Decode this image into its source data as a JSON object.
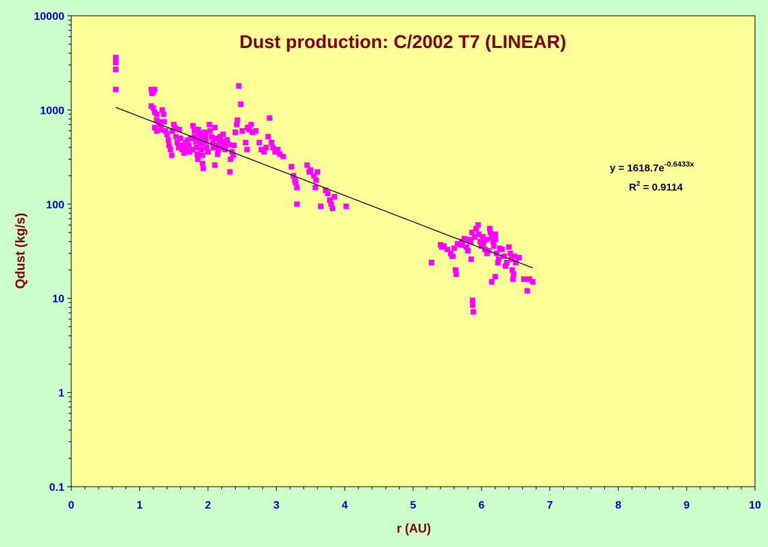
{
  "chart_data": {
    "type": "scatter",
    "title": "Dust production: C/2002 T7 (LINEAR)",
    "xlabel": "r (AU)",
    "ylabel": "Qdust (kg/s)",
    "xlim": [
      0,
      10
    ],
    "ylim": [
      0.1,
      10000
    ],
    "yscale": "log",
    "x_ticks": [
      "0",
      "1",
      "2",
      "3",
      "4",
      "5",
      "6",
      "7",
      "8",
      "9",
      "10"
    ],
    "y_ticks": [
      "0.1",
      "1",
      "10",
      "100",
      "1000",
      "10000"
    ],
    "grid": false,
    "legend": "none",
    "colors": {
      "plot_background": "#ffff99",
      "page_background": "#ccffcc",
      "points": "#ff00ff",
      "trendline": "#000000",
      "title": "#800000",
      "axis_title": "#800000",
      "tick_labels": "#0000cc"
    },
    "trendline": {
      "type": "exponential",
      "a": 1618.7,
      "b": -0.6433,
      "x_range": [
        0.65,
        6.75
      ],
      "equation_prefix": "y = 1618.7e",
      "equation_exponent": "-0.6433x",
      "r2_prefix": "R",
      "r2_sup": "2",
      "r2_suffix": " = 0.9114"
    },
    "series": [
      {
        "points": [
          [
            0.65,
            3600
          ],
          [
            0.65,
            3200
          ],
          [
            0.65,
            2700
          ],
          [
            0.65,
            1650
          ],
          [
            1.17,
            1650
          ],
          [
            1.18,
            1500
          ],
          [
            1.2,
            1550
          ],
          [
            1.22,
            1650
          ],
          [
            1.17,
            1100
          ],
          [
            1.2,
            1050
          ],
          [
            1.22,
            950
          ],
          [
            1.25,
            900
          ],
          [
            1.25,
            780
          ],
          [
            1.22,
            650
          ],
          [
            1.25,
            600
          ],
          [
            1.28,
            750
          ],
          [
            1.3,
            700
          ],
          [
            1.32,
            620
          ],
          [
            1.33,
            1000
          ],
          [
            1.35,
            900
          ],
          [
            1.36,
            750
          ],
          [
            1.38,
            600
          ],
          [
            1.4,
            550
          ],
          [
            1.42,
            480
          ],
          [
            1.43,
            420
          ],
          [
            1.45,
            380
          ],
          [
            1.47,
            330
          ],
          [
            1.48,
            600
          ],
          [
            1.5,
            700
          ],
          [
            1.52,
            650
          ],
          [
            1.53,
            520
          ],
          [
            1.55,
            450
          ],
          [
            1.57,
            400
          ],
          [
            1.58,
            620
          ],
          [
            1.6,
            500
          ],
          [
            1.62,
            380
          ],
          [
            1.63,
            420
          ],
          [
            1.65,
            350
          ],
          [
            1.67,
            450
          ],
          [
            1.68,
            400
          ],
          [
            1.7,
            480
          ],
          [
            1.72,
            420
          ],
          [
            1.73,
            360
          ],
          [
            1.75,
            500
          ],
          [
            1.77,
            380
          ],
          [
            1.78,
            680
          ],
          [
            1.8,
            600
          ],
          [
            1.8,
            520
          ],
          [
            1.82,
            460
          ],
          [
            1.83,
            400
          ],
          [
            1.84,
            340
          ],
          [
            1.85,
            300
          ],
          [
            1.86,
            620
          ],
          [
            1.88,
            560
          ],
          [
            1.88,
            500
          ],
          [
            1.9,
            440
          ],
          [
            1.9,
            380
          ],
          [
            1.92,
            330
          ],
          [
            1.92,
            270
          ],
          [
            1.93,
            240
          ],
          [
            1.95,
            580
          ],
          [
            1.96,
            520
          ],
          [
            1.97,
            460
          ],
          [
            1.98,
            400
          ],
          [
            2.0,
            360
          ],
          [
            2.02,
            700
          ],
          [
            2.03,
            600
          ],
          [
            2.05,
            520
          ],
          [
            2.07,
            450
          ],
          [
            2.08,
            400
          ],
          [
            2.1,
            650
          ],
          [
            2.1,
            260
          ],
          [
            2.12,
            500
          ],
          [
            2.13,
            420
          ],
          [
            2.14,
            340
          ],
          [
            2.15,
            380
          ],
          [
            2.17,
            480
          ],
          [
            2.18,
            520
          ],
          [
            2.2,
            460
          ],
          [
            2.2,
            400
          ],
          [
            2.22,
            550
          ],
          [
            2.24,
            440
          ],
          [
            2.25,
            380
          ],
          [
            2.28,
            480
          ],
          [
            2.3,
            430
          ],
          [
            2.32,
            220
          ],
          [
            2.33,
            300
          ],
          [
            2.35,
            360
          ],
          [
            2.37,
            330
          ],
          [
            2.38,
            420
          ],
          [
            2.4,
            580
          ],
          [
            2.42,
            700
          ],
          [
            2.43,
            780
          ],
          [
            2.45,
            1800
          ],
          [
            2.48,
            1150
          ],
          [
            2.5,
            600
          ],
          [
            2.55,
            450
          ],
          [
            2.57,
            380
          ],
          [
            2.58,
            650
          ],
          [
            2.6,
            620
          ],
          [
            2.63,
            700
          ],
          [
            2.65,
            580
          ],
          [
            2.7,
            600
          ],
          [
            2.75,
            450
          ],
          [
            2.78,
            380
          ],
          [
            2.82,
            360
          ],
          [
            2.85,
            400
          ],
          [
            2.88,
            520
          ],
          [
            2.9,
            820
          ],
          [
            2.93,
            450
          ],
          [
            2.95,
            400
          ],
          [
            2.98,
            360
          ],
          [
            3.02,
            380
          ],
          [
            3.05,
            340
          ],
          [
            3.1,
            320
          ],
          [
            3.22,
            250
          ],
          [
            3.25,
            200
          ],
          [
            3.27,
            180
          ],
          [
            3.28,
            170
          ],
          [
            3.3,
            150
          ],
          [
            3.3,
            100
          ],
          [
            3.45,
            260
          ],
          [
            3.48,
            220
          ],
          [
            3.5,
            230
          ],
          [
            3.55,
            200
          ],
          [
            3.58,
            180
          ],
          [
            3.57,
            150
          ],
          [
            3.6,
            220
          ],
          [
            3.65,
            95
          ],
          [
            3.72,
            140
          ],
          [
            3.75,
            130
          ],
          [
            3.78,
            110
          ],
          [
            3.8,
            100
          ],
          [
            3.82,
            90
          ],
          [
            3.85,
            120
          ],
          [
            4.02,
            95
          ],
          [
            5.27,
            24
          ],
          [
            5.4,
            37
          ],
          [
            5.42,
            35
          ],
          [
            5.45,
            36
          ],
          [
            5.5,
            33
          ],
          [
            5.55,
            30
          ],
          [
            5.57,
            28
          ],
          [
            5.58,
            28
          ],
          [
            5.6,
            34
          ],
          [
            5.62,
            20
          ],
          [
            5.63,
            18
          ],
          [
            5.65,
            38
          ],
          [
            5.7,
            37
          ],
          [
            5.72,
            40
          ],
          [
            5.75,
            43
          ],
          [
            5.78,
            35
          ],
          [
            5.8,
            32
          ],
          [
            5.82,
            42
          ],
          [
            5.84,
            40
          ],
          [
            5.85,
            26
          ],
          [
            5.86,
            50
          ],
          [
            5.87,
            9.5
          ],
          [
            5.87,
            8.5
          ],
          [
            5.88,
            7.2
          ],
          [
            5.9,
            45
          ],
          [
            5.92,
            55
          ],
          [
            5.95,
            60
          ],
          [
            5.96,
            48
          ],
          [
            5.98,
            40
          ],
          [
            6.0,
            36
          ],
          [
            6.02,
            45
          ],
          [
            6.03,
            38
          ],
          [
            6.05,
            33
          ],
          [
            6.07,
            42
          ],
          [
            6.08,
            30
          ],
          [
            6.1,
            32
          ],
          [
            6.12,
            55
          ],
          [
            6.13,
            50
          ],
          [
            6.15,
            44
          ],
          [
            6.17,
            40
          ],
          [
            6.18,
            36
          ],
          [
            6.2,
            48
          ],
          [
            6.2,
            42
          ],
          [
            6.22,
            30
          ],
          [
            6.24,
            24
          ],
          [
            6.25,
            26
          ],
          [
            6.27,
            34
          ],
          [
            6.3,
            33
          ],
          [
            6.33,
            28
          ],
          [
            6.35,
            22
          ],
          [
            6.37,
            24
          ],
          [
            6.4,
            35
          ],
          [
            6.42,
            30
          ],
          [
            6.44,
            26
          ],
          [
            6.45,
            20
          ],
          [
            6.46,
            16
          ],
          [
            6.47,
            18
          ],
          [
            6.48,
            28
          ],
          [
            6.5,
            24
          ],
          [
            6.55,
            27
          ],
          [
            6.62,
            16
          ],
          [
            6.67,
            12
          ],
          [
            6.7,
            16
          ],
          [
            6.75,
            15
          ],
          [
            6.15,
            15
          ],
          [
            6.2,
            17
          ]
        ]
      }
    ]
  }
}
